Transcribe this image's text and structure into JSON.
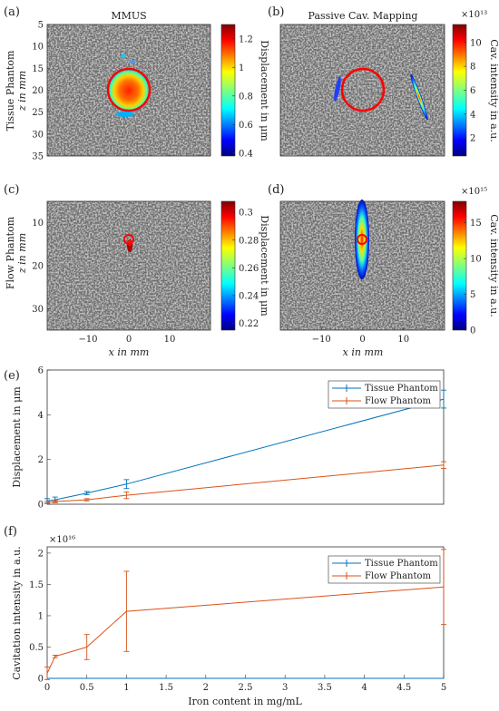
{
  "panels": {
    "a": {
      "label": "(a)",
      "title": "MMUS"
    },
    "b": {
      "label": "(b)",
      "title": "Passive Cav. Mapping"
    },
    "c": {
      "label": "(c)"
    },
    "d": {
      "label": "(d)"
    },
    "e": {
      "label": "(e)"
    },
    "f": {
      "label": "(f)"
    }
  },
  "maps": {
    "row_labels": {
      "tissue": {
        "line1": "Tissue Phantom",
        "line2": "z in mm"
      },
      "flow": {
        "line1": "Flow Phantom",
        "line2": "z in mm"
      }
    },
    "xlabel": "x in mm",
    "x_ticks": [
      "−10",
      "0",
      "10"
    ],
    "x_tick_values": [
      -10,
      0,
      10
    ],
    "x_range": [
      -20,
      20
    ],
    "tissue_z_ticks": [
      "5",
      "10",
      "15",
      "20",
      "25",
      "30",
      "35"
    ],
    "tissue_z_range": [
      5,
      35
    ],
    "flow_z_ticks": [
      "10",
      "20",
      "30"
    ],
    "flow_z_range": [
      5,
      35
    ],
    "colorbars": {
      "a": {
        "label": "Displacement in μm",
        "ticks": [
          "0.4",
          "0.6",
          "0.8",
          "1",
          "1.2"
        ],
        "tick_values": [
          0.4,
          0.6,
          0.8,
          1.0,
          1.2
        ],
        "range": [
          0.38,
          1.3
        ],
        "exponent": ""
      },
      "b": {
        "label": "Cav. intensity in a.u.",
        "ticks": [
          "2",
          "4",
          "6",
          "8",
          "10"
        ],
        "tick_values": [
          2,
          4,
          6,
          8,
          10
        ],
        "range": [
          0.5,
          11.5
        ],
        "exponent": "×10¹³"
      },
      "c": {
        "label": "Displacement in μm",
        "ticks": [
          "0.22",
          "0.24",
          "0.26",
          "0.28",
          "0.3"
        ],
        "tick_values": [
          0.22,
          0.24,
          0.26,
          0.28,
          0.3
        ],
        "range": [
          0.215,
          0.308
        ],
        "exponent": ""
      },
      "d": {
        "label": "Cav. intensity in a.u.",
        "ticks": [
          "0",
          "5",
          "10",
          "15"
        ],
        "tick_values": [
          0,
          5,
          10,
          15
        ],
        "range": [
          0,
          18
        ],
        "exponent": "×10¹⁵"
      }
    }
  },
  "chart_data": [
    {
      "id": "e",
      "type": "line",
      "title": "",
      "xlabel": "",
      "ylabel": "Displacement in μm",
      "xlim": [
        0,
        5
      ],
      "ylim": [
        0,
        6
      ],
      "y_ticks": [
        "0",
        "2",
        "4",
        "6"
      ],
      "y_tick_values": [
        0,
        2,
        4,
        6
      ],
      "grid": false,
      "legend": "top-right",
      "series": [
        {
          "name": "Tissue Phantom",
          "color": "#0072BD",
          "x": [
            0,
            0.1,
            0.5,
            1,
            5
          ],
          "y": [
            0.15,
            0.2,
            0.5,
            0.9,
            4.7
          ],
          "err": [
            0.1,
            0.12,
            0.07,
            0.2,
            0.4
          ]
        },
        {
          "name": "Flow Phantom",
          "color": "#D95319",
          "x": [
            0,
            0.1,
            0.5,
            1,
            5
          ],
          "y": [
            0.08,
            0.12,
            0.2,
            0.4,
            1.75
          ],
          "err": [
            0.05,
            0.05,
            0.05,
            0.15,
            0.15
          ]
        }
      ]
    },
    {
      "id": "f",
      "type": "line",
      "title": "",
      "xlabel": "Iron content in mg/mL",
      "ylabel": "Cavitation intensity in a.u.",
      "y_exponent": "×10¹⁶",
      "xlim": [
        0,
        5
      ],
      "ylim": [
        0,
        2.1
      ],
      "x_ticks": [
        "0",
        "0.5",
        "1",
        "1.5",
        "2",
        "2.5",
        "3",
        "3.5",
        "4",
        "4.5",
        "5"
      ],
      "x_tick_values": [
        0,
        0.5,
        1,
        1.5,
        2,
        2.5,
        3,
        3.5,
        4,
        4.5,
        5
      ],
      "y_ticks": [
        "0",
        "0.5",
        "1",
        "1.5",
        "2"
      ],
      "y_tick_values": [
        0,
        0.5,
        1,
        1.5,
        2
      ],
      "grid": false,
      "legend": "top-right",
      "series": [
        {
          "name": "Tissue Phantom",
          "color": "#0072BD",
          "x": [
            0,
            0.1,
            0.5,
            1,
            5
          ],
          "y": [
            0,
            0,
            0,
            0,
            0
          ],
          "err": [
            0,
            0,
            0,
            0,
            0
          ]
        },
        {
          "name": "Flow Phantom",
          "color": "#D95319",
          "x": [
            0,
            0.1,
            0.5,
            1,
            5
          ],
          "y": [
            0.08,
            0.35,
            0.5,
            1.07,
            1.46
          ],
          "err": [
            0.1,
            0.02,
            0.2,
            0.64,
            0.6
          ]
        }
      ]
    }
  ]
}
